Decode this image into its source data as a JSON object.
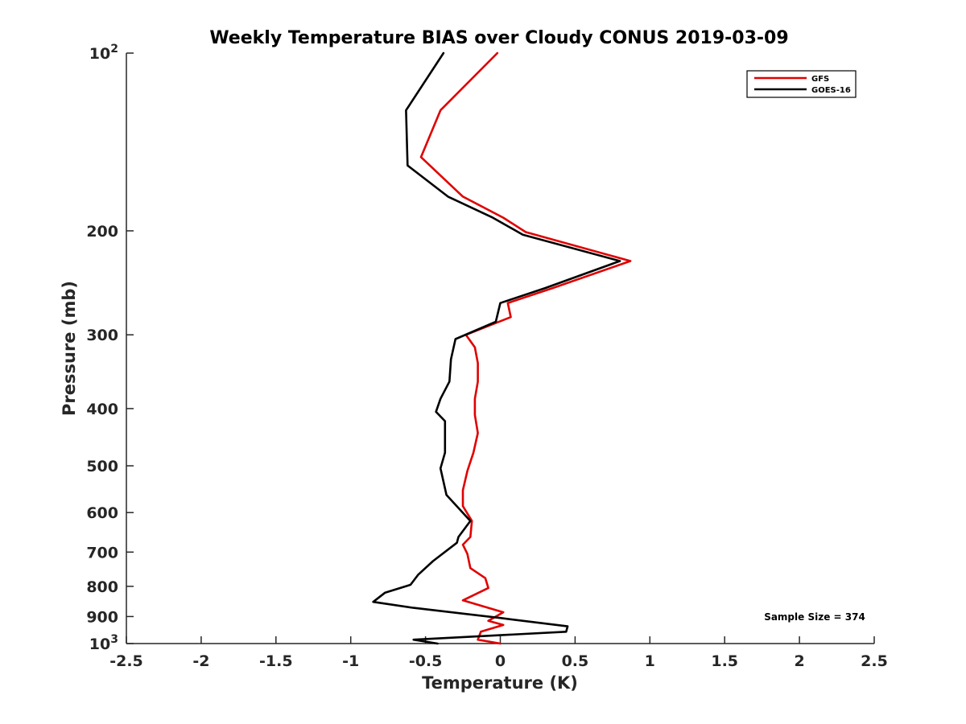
{
  "chart_data": {
    "type": "line",
    "title": "Weekly Temperature BIAS over Cloudy CONUS 2019-03-09",
    "xlabel": "Temperature (K)",
    "ylabel": "Pressure (mb)",
    "xlim": [
      -2.5,
      2.5
    ],
    "ylim": [
      100,
      1000
    ],
    "y_scale": "log",
    "y_reversed": true,
    "x_ticks": [
      -2.5,
      -2,
      -1.5,
      -1,
      -0.5,
      0,
      0.5,
      1,
      1.5,
      2,
      2.5
    ],
    "x_tick_labels": [
      "-2.5",
      "-2",
      "-1.5",
      "-1",
      "-0.5",
      "0",
      "0.5",
      "1",
      "1.5",
      "2",
      "2.5"
    ],
    "y_ticks": [
      100,
      200,
      300,
      400,
      500,
      600,
      700,
      800,
      900,
      1000
    ],
    "y_tick_labels": [
      "10^2",
      "200",
      "300",
      "400",
      "500",
      "600",
      "700",
      "800",
      "900",
      "10^3"
    ],
    "grid": false,
    "legend_position": "top-right",
    "annotation": "Sample Size = 374",
    "series": [
      {
        "name": "GFS",
        "color": "#e00000",
        "points": [
          [
            -0.02,
            100
          ],
          [
            -0.4,
            125
          ],
          [
            -0.53,
            150
          ],
          [
            -0.25,
            175
          ],
          [
            0.02,
            190
          ],
          [
            0.17,
            201
          ],
          [
            0.87,
            225
          ],
          [
            0.35,
            250
          ],
          [
            0.05,
            265
          ],
          [
            0.07,
            280
          ],
          [
            -0.23,
            300
          ],
          [
            -0.17,
            315
          ],
          [
            -0.15,
            335
          ],
          [
            -0.15,
            360
          ],
          [
            -0.17,
            385
          ],
          [
            -0.17,
            410
          ],
          [
            -0.15,
            440
          ],
          [
            -0.18,
            475
          ],
          [
            -0.22,
            510
          ],
          [
            -0.25,
            550
          ],
          [
            -0.25,
            585
          ],
          [
            -0.19,
            620
          ],
          [
            -0.2,
            660
          ],
          [
            -0.25,
            680
          ],
          [
            -0.22,
            705
          ],
          [
            -0.2,
            745
          ],
          [
            -0.1,
            775
          ],
          [
            -0.08,
            805
          ],
          [
            -0.25,
            845
          ],
          [
            0.02,
            885
          ],
          [
            -0.08,
            915
          ],
          [
            0.02,
            930
          ],
          [
            -0.13,
            955
          ],
          [
            -0.15,
            985
          ],
          [
            0.0,
            1000
          ]
        ]
      },
      {
        "name": "GOES-16",
        "color": "#000000",
        "points": [
          [
            -0.38,
            100
          ],
          [
            -0.63,
            125
          ],
          [
            -0.62,
            155
          ],
          [
            -0.35,
            175
          ],
          [
            -0.05,
            190
          ],
          [
            0.15,
            203
          ],
          [
            0.8,
            225
          ],
          [
            0.3,
            250
          ],
          [
            0.0,
            265
          ],
          [
            -0.03,
            285
          ],
          [
            -0.3,
            305
          ],
          [
            -0.33,
            330
          ],
          [
            -0.34,
            360
          ],
          [
            -0.4,
            385
          ],
          [
            -0.43,
            405
          ],
          [
            -0.37,
            420
          ],
          [
            -0.37,
            475
          ],
          [
            -0.4,
            505
          ],
          [
            -0.36,
            560
          ],
          [
            -0.2,
            620
          ],
          [
            -0.28,
            660
          ],
          [
            -0.29,
            675
          ],
          [
            -0.45,
            725
          ],
          [
            -0.55,
            765
          ],
          [
            -0.6,
            795
          ],
          [
            -0.77,
            820
          ],
          [
            -0.85,
            850
          ],
          [
            -0.58,
            870
          ],
          [
            0.0,
            905
          ],
          [
            0.45,
            935
          ],
          [
            0.44,
            955
          ],
          [
            -0.58,
            985
          ],
          [
            -0.42,
            1000
          ]
        ]
      }
    ]
  }
}
